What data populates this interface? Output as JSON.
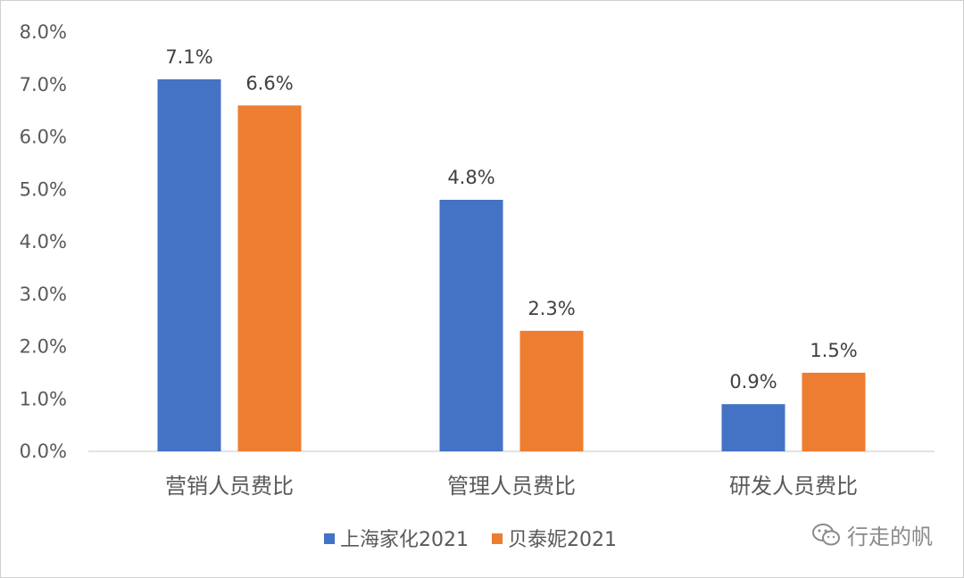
{
  "chart_data": {
    "type": "bar",
    "categories": [
      "营销人员费比",
      "管理人员费比",
      "研发人员费比"
    ],
    "series": [
      {
        "name": "上海家化2021",
        "color": "#4472C4",
        "values": [
          7.1,
          4.8,
          0.9
        ],
        "labels": [
          "7.1%",
          "4.8%",
          "0.9%"
        ]
      },
      {
        "name": "贝泰妮2021",
        "color": "#ED7D31",
        "values": [
          6.6,
          2.3,
          1.5
        ],
        "labels": [
          "6.6%",
          "2.3%",
          "1.5%"
        ]
      }
    ],
    "yticks": [
      "0.0%",
      "1.0%",
      "2.0%",
      "3.0%",
      "4.0%",
      "5.0%",
      "6.0%",
      "7.0%",
      "8.0%"
    ],
    "ylim": [
      0,
      8
    ],
    "title": "",
    "xlabel": "",
    "ylabel": "",
    "grid": false,
    "legend": "bottom"
  },
  "watermark": {
    "icon": "wechat-icon",
    "text": "行走的帆"
  }
}
